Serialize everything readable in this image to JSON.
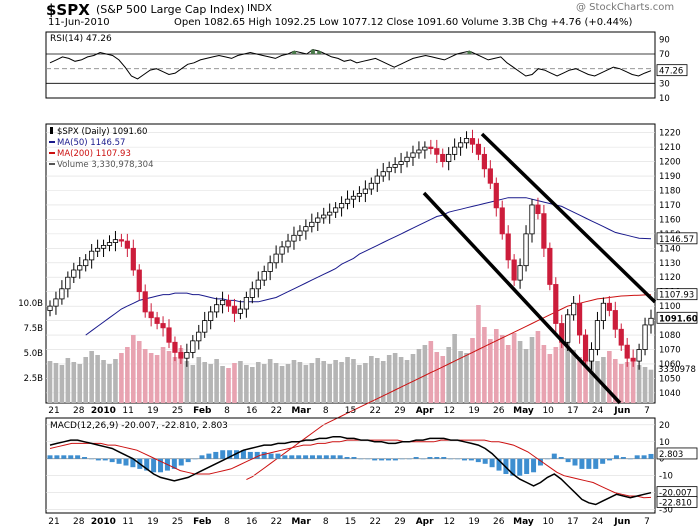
{
  "header": {
    "symbol": "$SPX",
    "name": "(S&P 500 Large Cap Index)",
    "exchange": "INDX",
    "date": "11-Jun-2010",
    "ohlc_line": "Open 1082.65  High 1092.25  Low 1077.12  Close 1091.60  Volume 3.3B  Chg +4.76 (+0.44%)",
    "brand": "@ StockCharts.com"
  },
  "colors": {
    "up": "#000000",
    "down": "#cc1d3b",
    "ma50": "#1a1a8c",
    "ma200": "#cc1111",
    "volume": "#b5b5b5",
    "rsi_over": "#4a7a4a",
    "histogram": "#3d8ed0",
    "trendline": "#000000",
    "grid": "#dddddd"
  },
  "chart_data": [
    {
      "type": "line",
      "panel": "RSI",
      "legend": "RSI(14) 47.26",
      "y_ticks": [
        10,
        30,
        50,
        70,
        90
      ],
      "ylim": [
        10,
        100
      ],
      "current_label": "47.26",
      "values": [
        58,
        62,
        66,
        64,
        60,
        62,
        66,
        68,
        72,
        70,
        68,
        62,
        52,
        40,
        36,
        42,
        48,
        50,
        46,
        42,
        44,
        50,
        56,
        58,
        62,
        64,
        66,
        68,
        66,
        64,
        68,
        70,
        72,
        70,
        68,
        66,
        64,
        68,
        70,
        74,
        72,
        70,
        76,
        74,
        70,
        66,
        64,
        60,
        62,
        58,
        60,
        62,
        64,
        60,
        56,
        52,
        56,
        60,
        64,
        66,
        68,
        66,
        64,
        62,
        66,
        70,
        72,
        74,
        70,
        66,
        62,
        64,
        66,
        58,
        52,
        46,
        40,
        42,
        50,
        48,
        44,
        40,
        44,
        48,
        50,
        46,
        42,
        40,
        44,
        48,
        52,
        50,
        46,
        42,
        40,
        44,
        47.26
      ]
    },
    {
      "type": "candlestick",
      "panel": "Price",
      "legend": [
        {
          "label": "$SPX (Daily) 1091.60"
        },
        {
          "label": "MA(50) 1146.57"
        },
        {
          "label": "MA(200) 1107.93"
        },
        {
          "label": "Volume 3,330,978,304"
        }
      ],
      "y_ticks": [
        1040,
        1050,
        1060,
        1070,
        1080,
        1090,
        1100,
        1110,
        1120,
        1130,
        1140,
        1150,
        1160,
        1170,
        1180,
        1190,
        1200,
        1210,
        1220
      ],
      "ylim": [
        1033,
        1226
      ],
      "price_labels": {
        "ma50": "1146.57",
        "ma200": "1107.93",
        "close": "1091.60",
        "volume": "3330978"
      },
      "volume_ticks": [
        "10.0B",
        "7.5B",
        "5.0B",
        "2.5B"
      ],
      "x_tick_labels": [
        "21",
        "28",
        "2010",
        "11",
        "19",
        "25",
        "Feb",
        "8",
        "16",
        "22",
        "Mar",
        "8",
        "15",
        "22",
        "29",
        "Apr",
        "12",
        "19",
        "26",
        "May",
        "10",
        "17",
        "24",
        "Jun",
        "7"
      ],
      "close": [
        1100,
        1105,
        1112,
        1120,
        1125,
        1128,
        1132,
        1138,
        1140,
        1142,
        1144,
        1146,
        1145,
        1140,
        1125,
        1110,
        1096,
        1092,
        1088,
        1085,
        1075,
        1068,
        1064,
        1068,
        1076,
        1082,
        1090,
        1096,
        1101,
        1104,
        1100,
        1095,
        1098,
        1106,
        1112,
        1118,
        1124,
        1130,
        1136,
        1141,
        1145,
        1149,
        1152,
        1155,
        1158,
        1161,
        1163,
        1165,
        1168,
        1171,
        1174,
        1176,
        1178,
        1181,
        1185,
        1190,
        1193,
        1196,
        1198,
        1200,
        1203,
        1206,
        1208,
        1210,
        1209,
        1205,
        1200,
        1205,
        1210,
        1213,
        1216,
        1212,
        1205,
        1195,
        1185,
        1168,
        1150,
        1132,
        1118,
        1128,
        1150,
        1170,
        1164,
        1140,
        1115,
        1088,
        1075,
        1094,
        1102,
        1080,
        1062,
        1070,
        1090,
        1102,
        1097,
        1084,
        1073,
        1064,
        1062,
        1070,
        1087,
        1091.6
      ],
      "ma50": [
        1080,
        1083,
        1086,
        1089,
        1092,
        1095,
        1098,
        1100,
        1102,
        1104,
        1105,
        1106,
        1107,
        1108,
        1108,
        1109,
        1109,
        1109,
        1108,
        1108,
        1107,
        1106,
        1105,
        1105,
        1104,
        1104,
        1103,
        1103,
        1103,
        1103,
        1104,
        1105,
        1106,
        1108,
        1110,
        1112,
        1114,
        1116,
        1118,
        1120,
        1122,
        1124,
        1126,
        1129,
        1131,
        1133,
        1136,
        1138,
        1140,
        1142,
        1144,
        1146,
        1148,
        1150,
        1152,
        1154,
        1156,
        1158,
        1160,
        1162,
        1163,
        1165,
        1166,
        1167,
        1168,
        1169,
        1170,
        1171,
        1172,
        1173,
        1174,
        1175,
        1175,
        1175,
        1175,
        1174,
        1173,
        1172,
        1171,
        1170,
        1169,
        1167,
        1165,
        1163,
        1161,
        1159,
        1157,
        1155,
        1153,
        1151,
        1150,
        1149,
        1148,
        1147,
        1146.8,
        1146.57
      ],
      "ma200": [
        980,
        982,
        985,
        988,
        991,
        994,
        997,
        1000,
        1003,
        1006,
        1009,
        1012,
        1015,
        1018,
        1020,
        1022,
        1024,
        1026,
        1028,
        1030,
        1032,
        1034,
        1036,
        1038,
        1040,
        1042,
        1044,
        1046,
        1048,
        1050,
        1052,
        1054,
        1056,
        1058,
        1060,
        1062,
        1064,
        1066,
        1068,
        1070,
        1072,
        1074,
        1076,
        1078,
        1080,
        1082,
        1084,
        1086,
        1088,
        1090,
        1092,
        1094,
        1096,
        1098,
        1100,
        1101,
        1102,
        1103,
        1104,
        1105,
        1105.5,
        1106,
        1106.5,
        1107,
        1107.2,
        1107.4,
        1107.6,
        1107.8,
        1107.93
      ],
      "volume_b": [
        4.2,
        4.0,
        3.8,
        4.5,
        4.1,
        3.9,
        4.6,
        5.2,
        4.8,
        4.3,
        3.9,
        4.4,
        5.0,
        5.6,
        6.8,
        6.2,
        5.4,
        5.0,
        4.8,
        5.6,
        5.2,
        4.6,
        5.5,
        4.2,
        3.8,
        4.6,
        4.1,
        3.9,
        4.4,
        3.7,
        3.5,
        4.0,
        4.2,
        3.8,
        3.6,
        4.1,
        3.9,
        4.4,
        4.0,
        3.7,
        3.9,
        4.3,
        4.1,
        3.8,
        4.0,
        4.5,
        4.2,
        3.9,
        4.3,
        4.1,
        4.6,
        4.4,
        3.8,
        4.0,
        4.7,
        4.5,
        4.2,
        4.8,
        5.0,
        4.6,
        4.3,
        4.9,
        5.4,
        5.8,
        6.2,
        5.1,
        4.7,
        5.6,
        6.9,
        5.2,
        5.0,
        6.5,
        9.8,
        7.6,
        6.4,
        7.4,
        6.8,
        5.8,
        7.0,
        6.2,
        5.4,
        6.6,
        7.2,
        5.8,
        4.9,
        5.6,
        6.1,
        7.0,
        5.3,
        4.6,
        5.0,
        4.8,
        4.2,
        4.6,
        5.2,
        4.4,
        3.9,
        4.1,
        4.3,
        3.8,
        3.6,
        3.33
      ]
    },
    {
      "type": "line",
      "panel": "MACD",
      "legend": "MACD(12,26,9) -20.007, -22.810, 2.803",
      "y_ticks": [
        20,
        10,
        0,
        -10,
        -20,
        -30
      ],
      "ylim": [
        -32,
        24
      ],
      "value_labels": {
        "histogram": "2.803",
        "macd": "-20.007",
        "signal": "-22.810"
      },
      "macd": [
        8,
        9,
        10,
        11,
        11,
        10,
        9,
        8,
        7,
        6,
        4,
        2,
        0,
        -3,
        -6,
        -9,
        -11,
        -12,
        -13,
        -12,
        -11,
        -9,
        -7,
        -5,
        -3,
        -1,
        1,
        3,
        5,
        6,
        7,
        8,
        8,
        9,
        9,
        10,
        10,
        11,
        11,
        12,
        12,
        13,
        13,
        12,
        12,
        11,
        11,
        10,
        10,
        9,
        9,
        10,
        10,
        11,
        11,
        12,
        12,
        12,
        11,
        11,
        10,
        9,
        8,
        6,
        3,
        -1,
        -5,
        -9,
        -12,
        -14,
        -16,
        -14,
        -11,
        -9,
        -12,
        -16,
        -20,
        -24,
        -26,
        -27,
        -25,
        -23,
        -21,
        -22,
        -23,
        -22,
        -21,
        -20.007
      ],
      "signal": [
        6,
        7,
        8,
        9,
        9,
        9,
        9,
        9,
        8,
        8,
        7,
        6,
        5,
        3,
        1,
        -1,
        -3,
        -5,
        -7,
        -8,
        -9,
        -9,
        -9,
        -8,
        -7,
        -6,
        -4,
        -2,
        0,
        2,
        3,
        4,
        5,
        6,
        7,
        8,
        8,
        9,
        9,
        10,
        10,
        11,
        11,
        11,
        11,
        11,
        11,
        11,
        11,
        10,
        10,
        10,
        10,
        10,
        11,
        11,
        11,
        11,
        11,
        11,
        11,
        10,
        10,
        9,
        8,
        6,
        4,
        1,
        -2,
        -5,
        -8,
        -10,
        -11,
        -12,
        -13,
        -14,
        -16,
        -18,
        -20,
        -21,
        -22,
        -22,
        -23,
        -22.81
      ],
      "histogram": [
        2,
        2,
        2,
        2,
        2,
        1,
        0,
        -1,
        -1,
        -2,
        -3,
        -4,
        -5,
        -6,
        -7,
        -8,
        -8,
        -7,
        -6,
        -4,
        -2,
        0,
        2,
        3,
        4,
        5,
        5,
        5,
        5,
        4,
        4,
        4,
        3,
        3,
        2,
        2,
        2,
        2,
        2,
        2,
        2,
        2,
        2,
        1,
        1,
        0,
        0,
        -1,
        -1,
        -1,
        -1,
        0,
        0,
        1,
        0,
        1,
        1,
        1,
        0,
        0,
        -1,
        -1,
        -2,
        -3,
        -5,
        -7,
        -9,
        -10,
        -10,
        -9,
        -8,
        -4,
        0,
        3,
        1,
        -2,
        -4,
        -6,
        -6,
        -6,
        -3,
        -1,
        2,
        1,
        0,
        2,
        2,
        2.803
      ]
    }
  ]
}
